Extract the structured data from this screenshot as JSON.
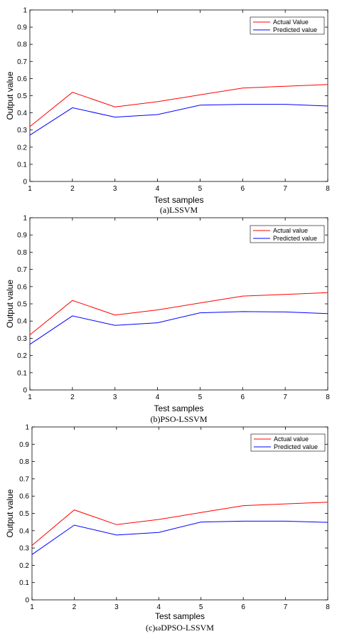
{
  "chart_data": [
    {
      "type": "line",
      "caption": "(a)LSSVM",
      "xlabel": "Test samples",
      "ylabel": "Output value",
      "xlim": [
        1,
        8
      ],
      "ylim": [
        0,
        1
      ],
      "xticks": [
        "1",
        "2",
        "3",
        "4",
        "5",
        "6",
        "7",
        "8"
      ],
      "yticks": [
        "0",
        "0.1",
        "0.2",
        "0.3",
        "0.4",
        "0.5",
        "0.6",
        "0.7",
        "0.8",
        "0.9",
        "1"
      ],
      "legend_position": "top-right",
      "x": [
        1,
        2,
        3,
        4,
        5,
        6,
        7,
        8
      ],
      "series": [
        {
          "name": "Actual Value",
          "color": "#ff0000",
          "values": [
            0.32,
            0.52,
            0.435,
            0.465,
            0.505,
            0.545,
            0.555,
            0.565
          ]
        },
        {
          "name": "Predicted value",
          "color": "#0000ff",
          "values": [
            0.27,
            0.43,
            0.375,
            0.39,
            0.445,
            0.45,
            0.45,
            0.44
          ]
        }
      ]
    },
    {
      "type": "line",
      "caption": "(b)PSO-LSSVM",
      "xlabel": "Test samples",
      "ylabel": "Output value",
      "xlim": [
        1,
        8
      ],
      "ylim": [
        0,
        1
      ],
      "xticks": [
        "1",
        "2",
        "3",
        "4",
        "5",
        "6",
        "7",
        "8"
      ],
      "yticks": [
        "0",
        "0.1",
        "0.2",
        "0.3",
        "0.4",
        "0.5",
        "0.6",
        "0.7",
        "0.8",
        "0.9",
        "1"
      ],
      "legend_position": "top-right",
      "x": [
        1,
        2,
        3,
        4,
        5,
        6,
        7,
        8
      ],
      "series": [
        {
          "name": "Actual value",
          "color": "#ff0000",
          "values": [
            0.32,
            0.52,
            0.435,
            0.465,
            0.505,
            0.545,
            0.555,
            0.565
          ]
        },
        {
          "name": "Predicted value",
          "color": "#0000ff",
          "values": [
            0.265,
            0.43,
            0.375,
            0.39,
            0.448,
            0.455,
            0.453,
            0.443
          ]
        }
      ]
    },
    {
      "type": "line",
      "caption": "(c)ωDPSO-LSSVM",
      "xlabel": "Test samples",
      "ylabel": "Output value",
      "xlim": [
        1,
        8
      ],
      "ylim": [
        0,
        1
      ],
      "xticks": [
        "1",
        "2",
        "3",
        "4",
        "5",
        "6",
        "7",
        "8"
      ],
      "yticks": [
        "0",
        "0.1",
        "0.2",
        "0.3",
        "0.4",
        "0.5",
        "0.6",
        "0.7",
        "0.8",
        "0.9",
        "1"
      ],
      "legend_position": "top-right",
      "x": [
        1,
        2,
        3,
        4,
        5,
        6,
        7,
        8
      ],
      "series": [
        {
          "name": "Actual value",
          "color": "#ff0000",
          "values": [
            0.315,
            0.52,
            0.435,
            0.465,
            0.505,
            0.545,
            0.555,
            0.565
          ]
        },
        {
          "name": "Predicted value",
          "color": "#0000ff",
          "values": [
            0.262,
            0.432,
            0.375,
            0.39,
            0.45,
            0.455,
            0.455,
            0.448
          ]
        }
      ]
    }
  ]
}
